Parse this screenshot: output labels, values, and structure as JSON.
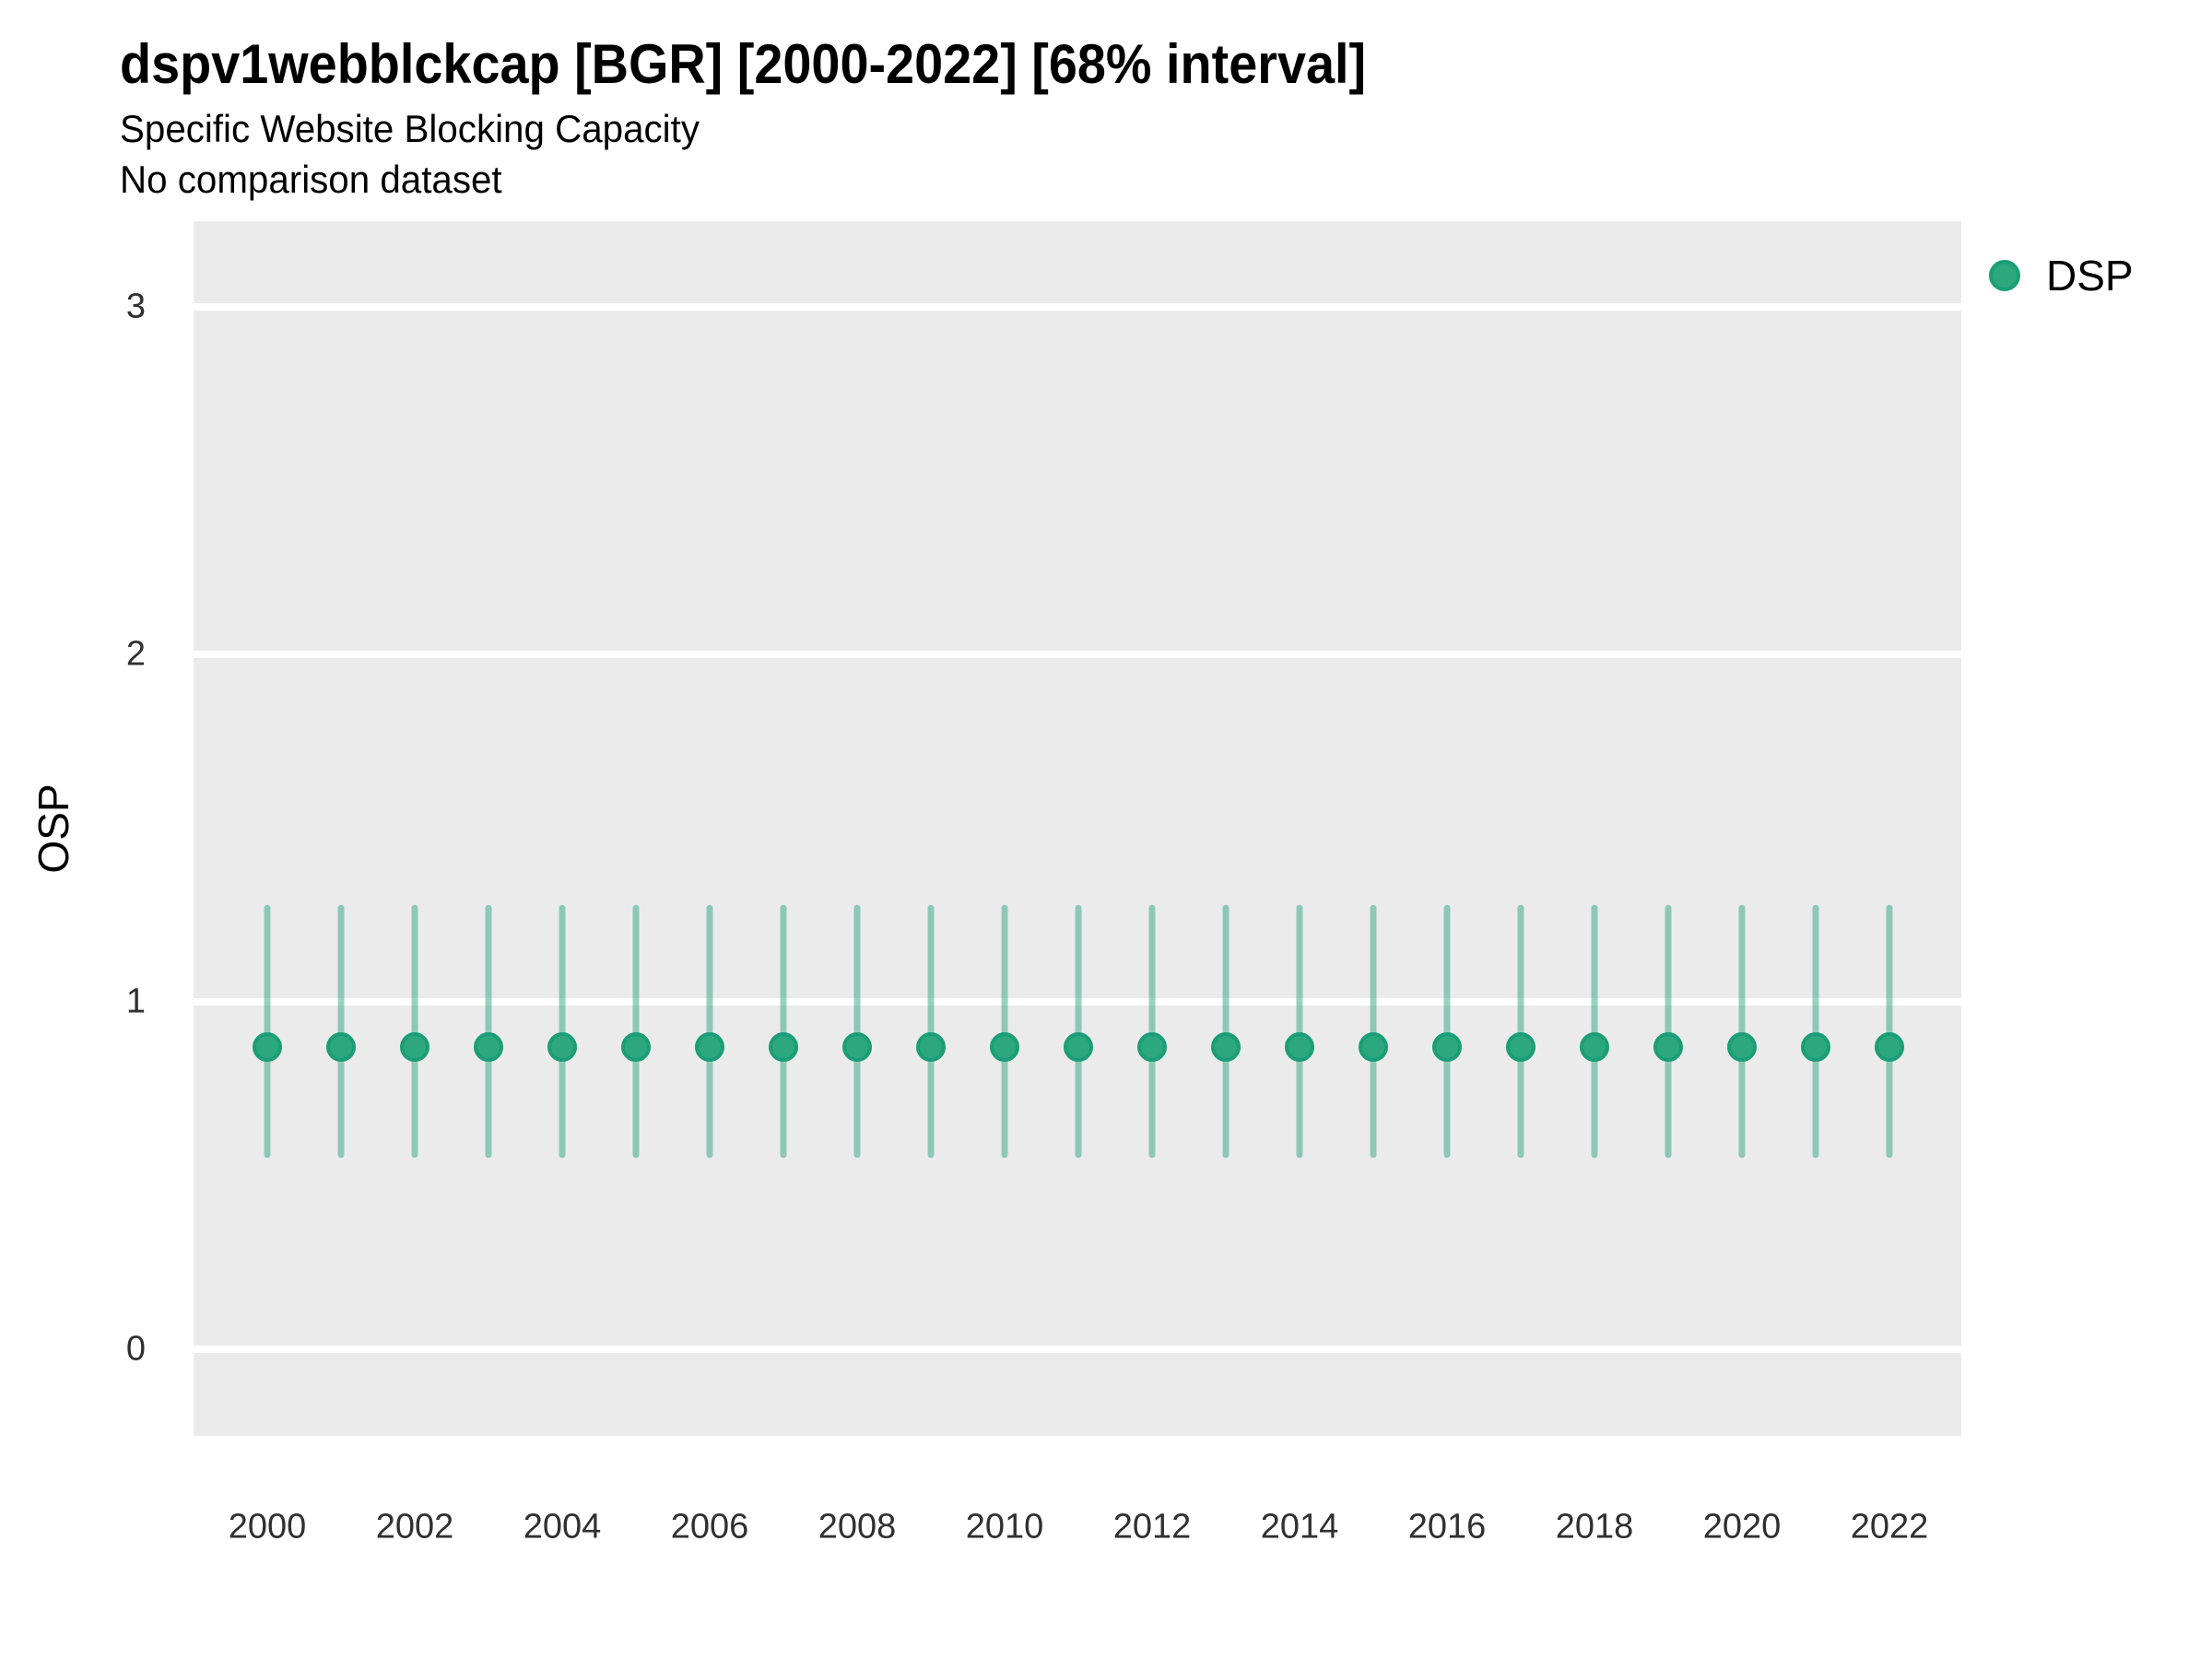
{
  "chart_data": {
    "type": "scatter",
    "subtype": "pointrange-errorbar",
    "title": "dspv1webblckcap [BGR] [2000-2022] [68% interval]",
    "subtitle": "Specific Website Blocking Capacity",
    "note": "No comparison dataset",
    "xlabel": "",
    "ylabel": "OSP",
    "interval_level": "68%",
    "ylim": [
      -0.25,
      3.25
    ],
    "yticks": [
      0,
      1,
      2,
      3
    ],
    "x": [
      2000,
      2001,
      2002,
      2003,
      2004,
      2005,
      2006,
      2007,
      2008,
      2009,
      2010,
      2011,
      2012,
      2013,
      2014,
      2015,
      2016,
      2017,
      2018,
      2019,
      2020,
      2021,
      2022
    ],
    "x_tick_labels": [
      "2000",
      "2002",
      "2004",
      "2006",
      "2008",
      "2010",
      "2012",
      "2014",
      "2016",
      "2018",
      "2020",
      "2022"
    ],
    "series": [
      {
        "name": "DSP",
        "estimates": [
          0.87,
          0.87,
          0.87,
          0.87,
          0.87,
          0.87,
          0.87,
          0.87,
          0.87,
          0.87,
          0.87,
          0.87,
          0.87,
          0.87,
          0.87,
          0.87,
          0.87,
          0.87,
          0.87,
          0.87,
          0.87,
          0.87,
          0.87
        ],
        "lower_68": [
          0.56,
          0.56,
          0.56,
          0.56,
          0.56,
          0.56,
          0.56,
          0.56,
          0.56,
          0.56,
          0.56,
          0.56,
          0.56,
          0.56,
          0.56,
          0.56,
          0.56,
          0.56,
          0.56,
          0.56,
          0.56,
          0.56,
          0.56
        ],
        "upper_68": [
          1.27,
          1.27,
          1.27,
          1.27,
          1.27,
          1.27,
          1.27,
          1.27,
          1.27,
          1.27,
          1.27,
          1.27,
          1.27,
          1.27,
          1.27,
          1.27,
          1.27,
          1.27,
          1.27,
          1.27,
          1.27,
          1.27,
          1.27
        ]
      }
    ],
    "legend_position": "right-top",
    "grid": "horizontal-major-only",
    "colors": {
      "point_fill": "#2CA77E",
      "point_stroke": "#1B9E77",
      "interval_bar": "rgba(27,158,119,0.45)",
      "panel_background": "#EBEBEB",
      "gridline": "#FFFFFF"
    }
  }
}
